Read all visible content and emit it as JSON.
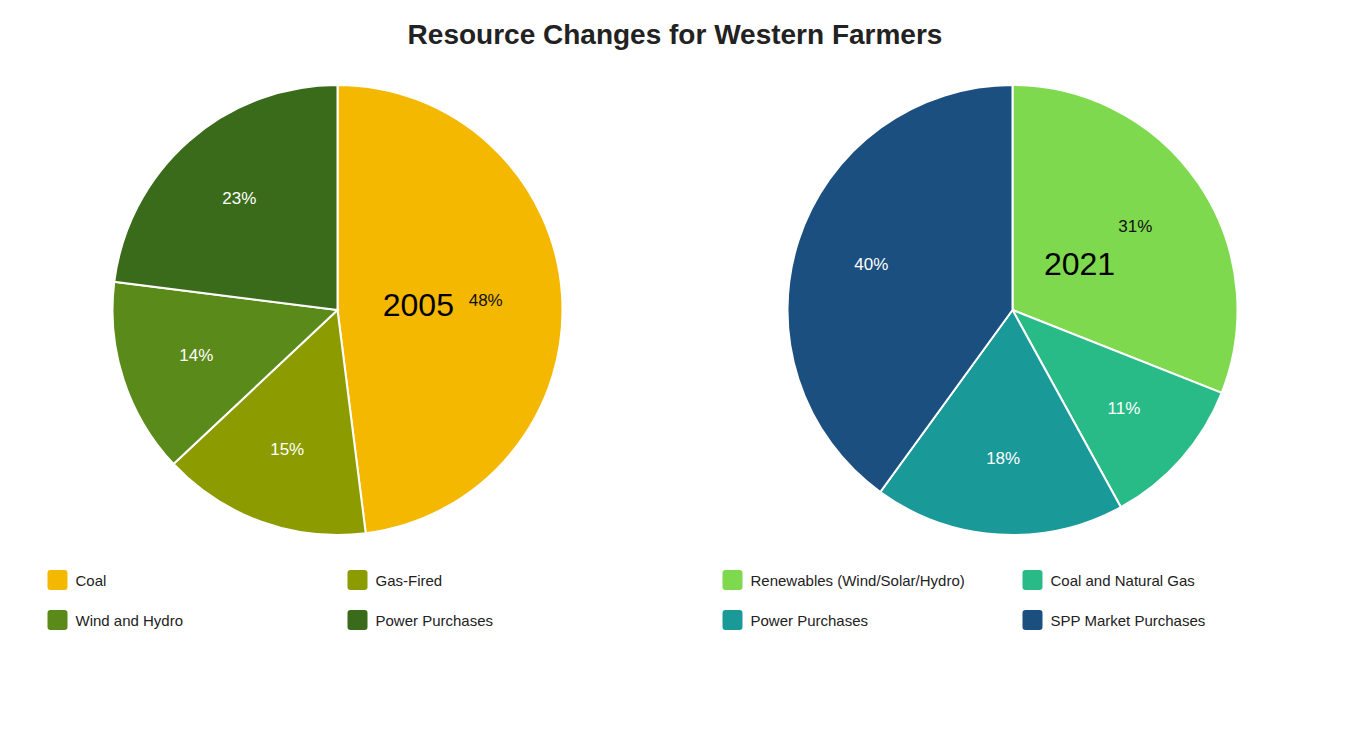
{
  "chart_data": [
    {
      "type": "pie",
      "title": "Resource Changes for Western Farmers",
      "subtitle": "2005",
      "categories": [
        "Coal",
        "Gas-Fired",
        "Wind and Hydro",
        "Power Purchases"
      ],
      "values": [
        48,
        15,
        14,
        23
      ],
      "value_labels": [
        "48%",
        "15%",
        "14%",
        "23%"
      ],
      "colors": [
        "#F5B800",
        "#8B9B00",
        "#5A8A1A",
        "#3A6B1A"
      ],
      "data_labels": true,
      "legend": "bottom"
    },
    {
      "type": "pie",
      "subtitle": "2021",
      "categories": [
        "Renewables (Wind/Solar/Hydro)",
        "Coal and Natural Gas",
        "Power Purchases",
        "SPP Market Purchases"
      ],
      "values": [
        31,
        11,
        18,
        40
      ],
      "value_labels": [
        "31%",
        "11%",
        "18%",
        "40%"
      ],
      "colors": [
        "#7FD94F",
        "#28BB88",
        "#1A9999",
        "#1B4F80"
      ],
      "data_labels": true,
      "legend": "bottom"
    }
  ]
}
